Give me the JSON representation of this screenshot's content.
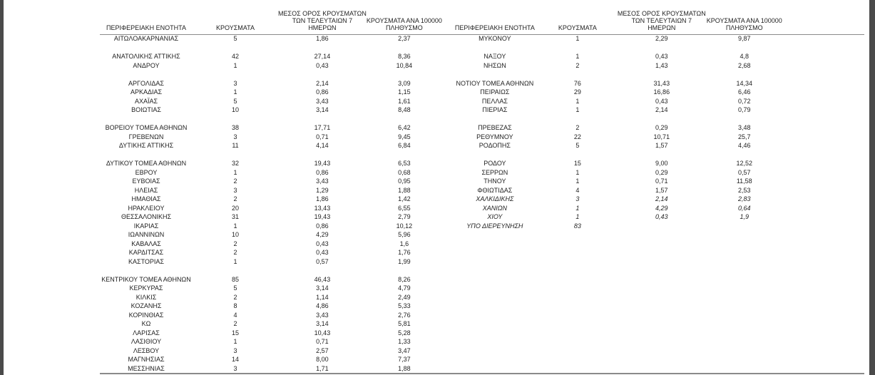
{
  "page": {
    "background": "#ffffff",
    "edge_bar_color": "#4a4a4a",
    "line_color": "#8a8a8a",
    "text_color": "#1f1f1f"
  },
  "columns": {
    "region": "ΠΕΡΙΦΕΡΕΙΑΚΗ ΕΝΟΤΗΤΑ",
    "cases": "ΚΡΟΥΣΜΑΤΑ",
    "avg7_lines": [
      "ΜΕΣΟΣ ΟΡΟΣ ΚΡΟΥΣΜΑΤΩΝ",
      "ΤΩΝ ΤΕΛΕΥΤΑΙΩΝ 7",
      "ΗΜΕΡΩΝ"
    ],
    "per100k_lines": [
      "ΚΡΟΥΣΜΑΤΑ ΑΝΑ 100000",
      "ΠΛΗΘΥΣΜΟ"
    ]
  },
  "tables": [
    {
      "id": "left",
      "rows": [
        {
          "region": "ΑΙΤΩΛΟΑΚΑΡΝΑΝΙΑΣ",
          "cases": "5",
          "avg7": "1,86",
          "per100k": "2,37"
        },
        {
          "spacer": true
        },
        {
          "region": "ΑΝΑΤΟΛΙΚΗΣ ΑΤΤΙΚΗΣ",
          "cases": "42",
          "avg7": "27,14",
          "per100k": "8,36"
        },
        {
          "region": "ΑΝΔΡΟΥ",
          "cases": "1",
          "avg7": "0,43",
          "per100k": "10,84"
        },
        {
          "spacer": true
        },
        {
          "region": "ΑΡΓΟΛΙΔΑΣ",
          "cases": "3",
          "avg7": "2,14",
          "per100k": "3,09"
        },
        {
          "region": "ΑΡΚΑΔΙΑΣ",
          "cases": "1",
          "avg7": "0,86",
          "per100k": "1,15"
        },
        {
          "region": "ΑΧΑΪΑΣ",
          "cases": "5",
          "avg7": "3,43",
          "per100k": "1,61"
        },
        {
          "region": "ΒΟΙΩΤΙΑΣ",
          "cases": "10",
          "avg7": "3,14",
          "per100k": "8,48"
        },
        {
          "spacer": true
        },
        {
          "region": "ΒΟΡΕΙΟΥ ΤΟΜΕΑ ΑΘΗΝΩΝ",
          "cases": "38",
          "avg7": "17,71",
          "per100k": "6,42"
        },
        {
          "region": "ΓΡΕΒΕΝΩΝ",
          "cases": "3",
          "avg7": "0,71",
          "per100k": "9,45"
        },
        {
          "region": "ΔΥΤΙΚΗΣ ΑΤΤΙΚΗΣ",
          "cases": "11",
          "avg7": "4,14",
          "per100k": "6,84"
        },
        {
          "spacer": true
        },
        {
          "region": "ΔΥΤΙΚΟΥ ΤΟΜΕΑ ΑΘΗΝΩΝ",
          "cases": "32",
          "avg7": "19,43",
          "per100k": "6,53"
        },
        {
          "region": "ΕΒΡΟΥ",
          "cases": "1",
          "avg7": "0,86",
          "per100k": "0,68"
        },
        {
          "region": "ΕΥΒΟΙΑΣ",
          "cases": "2",
          "avg7": "3,43",
          "per100k": "0,95"
        },
        {
          "region": "ΗΛΕΙΑΣ",
          "cases": "3",
          "avg7": "1,29",
          "per100k": "1,88"
        },
        {
          "region": "ΗΜΑΘΙΑΣ",
          "cases": "2",
          "avg7": "1,86",
          "per100k": "1,42"
        },
        {
          "region": "ΗΡΑΚΛΕΙΟΥ",
          "cases": "20",
          "avg7": "13,43",
          "per100k": "6,55"
        },
        {
          "region": "ΘΕΣΣΑΛΟΝΙΚΗΣ",
          "cases": "31",
          "avg7": "19,43",
          "per100k": "2,79"
        },
        {
          "region": "ΙΚΑΡΙΑΣ",
          "cases": "1",
          "avg7": "0,86",
          "per100k": "10,12"
        },
        {
          "region": "ΙΩΑΝΝΙΝΩΝ",
          "cases": "10",
          "avg7": "4,29",
          "per100k": "5,96"
        },
        {
          "region": "ΚΑΒΑΛΑΣ",
          "cases": "2",
          "avg7": "0,43",
          "per100k": "1,6"
        },
        {
          "region": "ΚΑΡΔΙΤΣΑΣ",
          "cases": "2",
          "avg7": "0,43",
          "per100k": "1,76"
        },
        {
          "region": "ΚΑΣΤΟΡΙΑΣ",
          "cases": "1",
          "avg7": "0,57",
          "per100k": "1,99"
        },
        {
          "spacer": true
        },
        {
          "region": "ΚΕΝΤΡΙΚΟΥ ΤΟΜΕΑ ΑΘΗΝΩΝ",
          "cases": "85",
          "avg7": "46,43",
          "per100k": "8,26"
        },
        {
          "region": "ΚΕΡΚΥΡΑΣ",
          "cases": "5",
          "avg7": "3,14",
          "per100k": "4,79"
        },
        {
          "region": "ΚΙΛΚΙΣ",
          "cases": "2",
          "avg7": "1,14",
          "per100k": "2,49"
        },
        {
          "region": "ΚΟΖΑΝΗΣ",
          "cases": "8",
          "avg7": "4,86",
          "per100k": "5,33"
        },
        {
          "region": "ΚΟΡΙΝΘΙΑΣ",
          "cases": "4",
          "avg7": "3,43",
          "per100k": "2,76"
        },
        {
          "region": "ΚΩ",
          "cases": "2",
          "avg7": "3,14",
          "per100k": "5,81"
        },
        {
          "region": "ΛΑΡΙΣΑΣ",
          "cases": "15",
          "avg7": "10,43",
          "per100k": "5,28"
        },
        {
          "region": "ΛΑΣΙΘΙΟΥ",
          "cases": "1",
          "avg7": "0,71",
          "per100k": "1,33"
        },
        {
          "region": "ΛΕΣΒΟΥ",
          "cases": "3",
          "avg7": "2,57",
          "per100k": "3,47"
        },
        {
          "region": "ΜΑΓΝΗΣΙΑΣ",
          "cases": "14",
          "avg7": "8,00",
          "per100k": "7,37"
        },
        {
          "region": "ΜΕΣΣΗΝΙΑΣ",
          "cases": "3",
          "avg7": "1,71",
          "per100k": "1,88"
        }
      ]
    },
    {
      "id": "right",
      "rows": [
        {
          "region": "ΜΥΚΟΝΟΥ",
          "cases": "1",
          "avg7": "2,29",
          "per100k": "9,87"
        },
        {
          "spacer": true
        },
        {
          "region": "ΝΑΞΟΥ",
          "cases": "1",
          "avg7": "0,43",
          "per100k": "4,8"
        },
        {
          "region": "ΝΗΣΩΝ",
          "cases": "2",
          "avg7": "1,43",
          "per100k": "2,68"
        },
        {
          "spacer": true
        },
        {
          "region": "ΝΟΤΙΟΥ ΤΟΜΕΑ ΑΘΗΝΩΝ",
          "cases": "76",
          "avg7": "31,43",
          "per100k": "14,34"
        },
        {
          "region": "ΠΕΙΡΑΙΩΣ",
          "cases": "29",
          "avg7": "16,86",
          "per100k": "6,46"
        },
        {
          "region": "ΠΕΛΛΑΣ",
          "cases": "1",
          "avg7": "0,43",
          "per100k": "0,72"
        },
        {
          "region": "ΠΙΕΡΙΑΣ",
          "cases": "1",
          "avg7": "2,14",
          "per100k": "0,79"
        },
        {
          "spacer": true
        },
        {
          "region": "ΠΡΕΒΕΖΑΣ",
          "cases": "2",
          "avg7": "0,29",
          "per100k": "3,48"
        },
        {
          "region": "ΡΕΘΥΜΝΟΥ",
          "cases": "22",
          "avg7": "10,71",
          "per100k": "25,7"
        },
        {
          "region": "ΡΟΔΟΠΗΣ",
          "cases": "5",
          "avg7": "1,57",
          "per100k": "4,46"
        },
        {
          "spacer": true
        },
        {
          "region": "ΡΟΔΟΥ",
          "cases": "15",
          "avg7": "9,00",
          "per100k": "12,52"
        },
        {
          "region": "ΣΕΡΡΩΝ",
          "cases": "1",
          "avg7": "0,29",
          "per100k": "0,57"
        },
        {
          "region": "ΤΗΝΟΥ",
          "cases": "1",
          "avg7": "0,71",
          "per100k": "11,58"
        },
        {
          "region": "ΦΘΙΩΤΙΔΑΣ",
          "cases": "4",
          "avg7": "1,57",
          "per100k": "2,53"
        },
        {
          "region": "ΧΑΛΚΙΔΙΚΗΣ",
          "cases": "3",
          "avg7": "2,14",
          "per100k": "2,83",
          "italic": true
        },
        {
          "region": "ΧΑΝΙΩΝ",
          "cases": "1",
          "avg7": "4,29",
          "per100k": "0,64",
          "italic": true
        },
        {
          "region": "ΧΙΟΥ",
          "cases": "1",
          "avg7": "0,43",
          "per100k": "1,9",
          "italic": true
        },
        {
          "region": "ΥΠΟ ΔΙΕΡΕΥΝΗΣΗ",
          "cases": "83",
          "avg7": "",
          "per100k": "",
          "italic": true
        }
      ]
    }
  ]
}
